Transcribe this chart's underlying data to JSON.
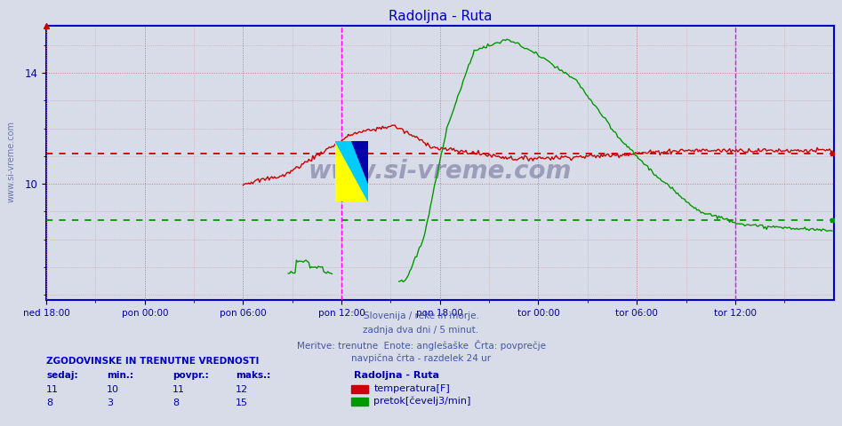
{
  "title": "Radoljna - Ruta",
  "title_color": "#0000cc",
  "bg_color": "#d8dce8",
  "x_labels": [
    "ned 18:00",
    "pon 00:00",
    "pon 06:00",
    "pon 12:00",
    "pon 18:00",
    "tor 00:00",
    "tor 06:00",
    "tor 12:00"
  ],
  "total_points": 576,
  "ylim_min": 5.8,
  "ylim_max": 15.7,
  "yticks": [
    10,
    14
  ],
  "temp_avg_line": 11.1,
  "flow_avg_line": 8.7,
  "temp_color": "#cc0000",
  "flow_color": "#009900",
  "vline_color": "#ff00ff",
  "grid_color": "#cc8888",
  "axis_color": "#0000cc",
  "watermark": "www.si-vreme.com",
  "footer_lines": [
    "Slovenija / reke in morje.",
    "zadnja dva dni / 5 minut.",
    "Meritve: trenutne  Enote: anglešaške  Črta: povprečje",
    "navpična črta - razdelek 24 ur"
  ],
  "legend_title": "Radoljna - Ruta",
  "legend_items": [
    "temperatura[F]",
    "pretok[čevelj3/min]"
  ],
  "legend_colors": [
    "#cc0000",
    "#009900"
  ],
  "stats_header": "ZGODOVINSKE IN TRENUTNE VREDNOSTI",
  "stats_col_labels": [
    "sedaj:",
    "min.:",
    "povpr.:",
    "maks.:"
  ],
  "stats_temp": [
    11,
    10,
    11,
    12
  ],
  "stats_flow": [
    8,
    3,
    8,
    15
  ],
  "vline1_idx": 216,
  "vline2_idx": 504,
  "x_tick_indices": [
    0,
    72,
    144,
    216,
    288,
    360,
    432,
    504
  ]
}
